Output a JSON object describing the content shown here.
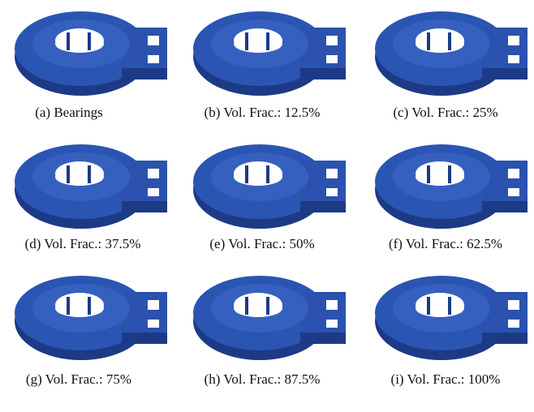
{
  "figure": {
    "captions": [
      "(a) Bearings",
      "(b) Vol. Frac.: 12.5%",
      "(c) Vol. Frac.: 25%",
      "(d) Vol. Frac.: 37.5%",
      "(e) Vol. Frac.: 50%",
      "(f) Vol. Frac.: 62.5%",
      "(g) Vol. Frac.: 75%",
      "(h) Vol. Frac.: 87.5%",
      "(i) Vol. Frac.: 100%"
    ]
  }
}
